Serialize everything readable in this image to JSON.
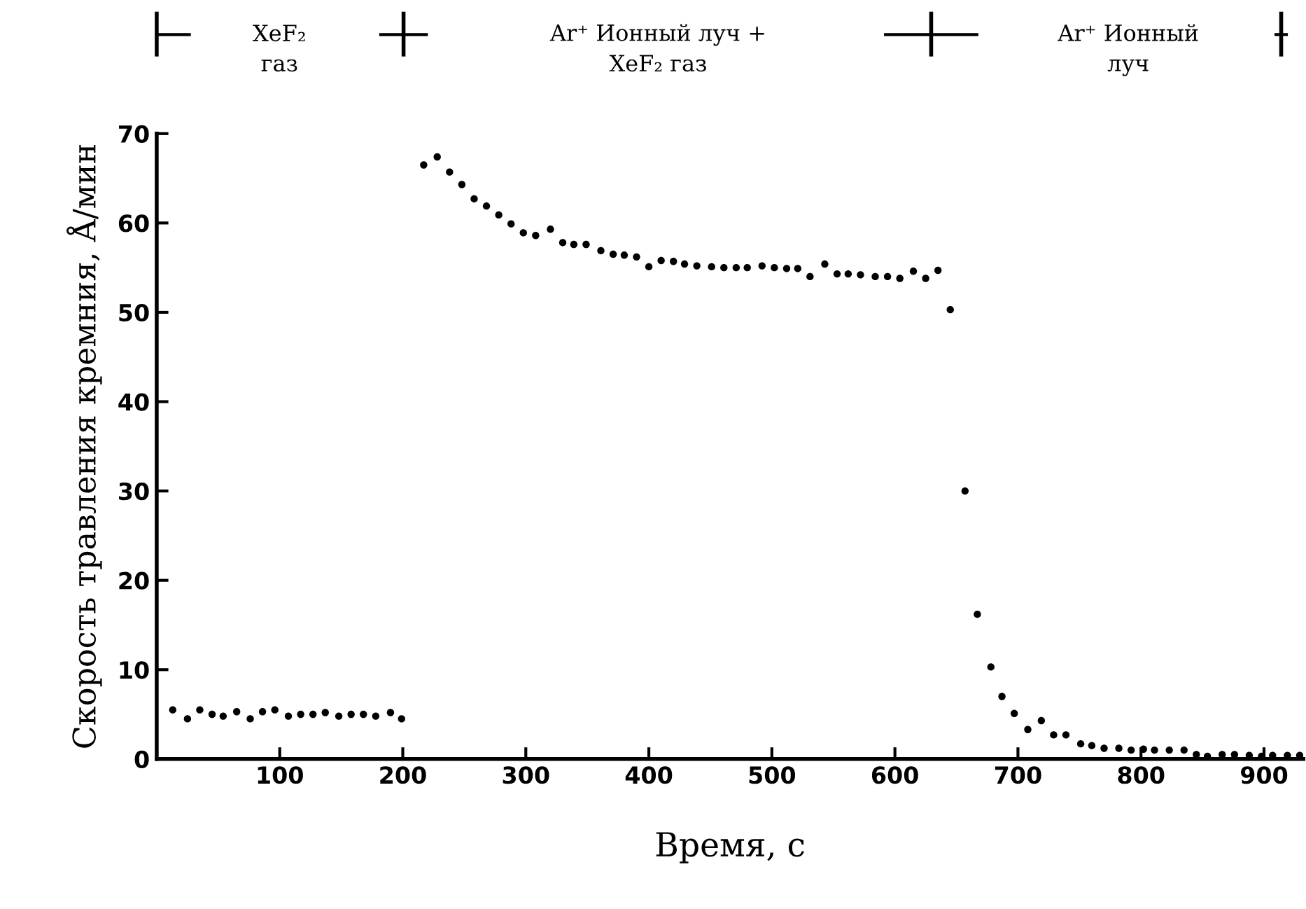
{
  "chart_data": {
    "type": "scatter",
    "xlabel": "Время, с",
    "ylabel": "Скорость травления кремния, Å/мин",
    "annotations": [
      "XeF₂\nгаз",
      "Ar⁺ Ионный луч +\nXeF₂ газ",
      "Ar⁺ Ионный\nлуч"
    ],
    "xlim": [
      0,
      932
    ],
    "ylim": [
      0,
      70
    ],
    "xticks": [
      100,
      200,
      300,
      400,
      500,
      600,
      700,
      800,
      900
    ],
    "yticks": [
      0,
      10,
      20,
      30,
      40,
      50,
      60,
      70
    ],
    "grid": false,
    "marker": "circle",
    "series": [
      {
        "color": "#000000",
        "x": [
          13,
          25,
          35,
          45,
          54,
          65,
          76,
          86,
          96,
          107,
          117,
          127,
          137,
          148,
          158,
          168,
          178,
          190,
          199,
          217,
          228,
          238,
          248,
          258,
          268,
          278,
          288,
          298,
          308,
          320,
          330,
          339,
          349,
          361,
          371,
          380,
          390,
          400,
          410,
          420,
          429,
          439,
          451,
          461,
          471,
          480,
          492,
          502,
          512,
          521,
          531,
          543,
          553,
          562,
          572,
          584,
          594,
          604,
          615,
          625,
          635,
          645,
          657,
          667,
          678,
          687,
          697,
          708,
          719,
          729,
          739,
          751,
          760,
          770,
          782,
          792,
          802,
          811,
          823,
          835,
          845,
          854,
          866,
          876,
          888,
          898,
          907,
          919,
          929
        ],
        "values": [
          5.5,
          4.5,
          5.5,
          5,
          4.8,
          5.3,
          4.5,
          5.3,
          5.5,
          4.8,
          5,
          5,
          5.2,
          4.8,
          5,
          5,
          4.8,
          5.2,
          4.5,
          66.5,
          67.4,
          65.7,
          64.3,
          62.7,
          61.9,
          60.9,
          59.9,
          58.9,
          58.6,
          59.3,
          57.8,
          57.6,
          57.6,
          56.9,
          56.5,
          56.4,
          56.2,
          55.1,
          55.8,
          55.7,
          55.4,
          55.2,
          55.1,
          55,
          55,
          55,
          55.2,
          55,
          54.9,
          54.9,
          54,
          55.4,
          54.3,
          54.3,
          54.2,
          54,
          54,
          53.8,
          54.6,
          53.8,
          54.7,
          50.3,
          30,
          16.2,
          10.3,
          7,
          5.1,
          3.3,
          4.3,
          2.7,
          2.7,
          1.7,
          1.5,
          1.2,
          1.2,
          1,
          1.1,
          1,
          1,
          1,
          0.5,
          0.3,
          0.5,
          0.5,
          0.4,
          0.3,
          0.4,
          0.4,
          0.4
        ]
      }
    ]
  }
}
